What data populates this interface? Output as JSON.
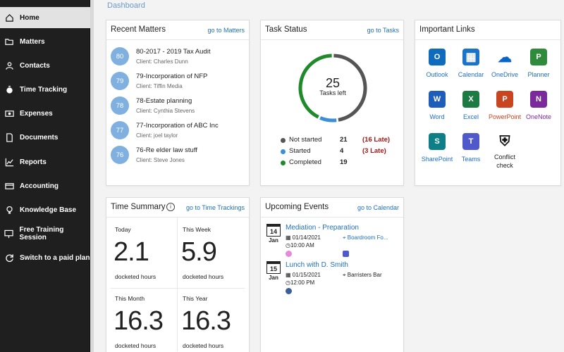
{
  "breadcrumb": "Dashboard",
  "sidebar": {
    "items": [
      {
        "label": "Home",
        "icon": "home-icon"
      },
      {
        "label": "Matters",
        "icon": "folder-icon"
      },
      {
        "label": "Contacts",
        "icon": "person-icon"
      },
      {
        "label": "Time Tracking",
        "icon": "stopwatch-icon"
      },
      {
        "label": "Expenses",
        "icon": "money-icon"
      },
      {
        "label": "Documents",
        "icon": "document-icon"
      },
      {
        "label": "Reports",
        "icon": "chart-icon"
      },
      {
        "label": "Accounting",
        "icon": "card-icon"
      },
      {
        "label": "Knowledge Base",
        "icon": "bulb-icon"
      },
      {
        "label": "Free Training Session",
        "icon": "presentation-icon"
      },
      {
        "label": "Switch to a paid plan",
        "icon": "refresh-icon"
      }
    ]
  },
  "recent_matters": {
    "title": "Recent Matters",
    "link": "go to Matters",
    "items": [
      {
        "num": "80",
        "title": "80-2017 - 2019 Tax Audit",
        "client": "Client: Charles Dunn"
      },
      {
        "num": "79",
        "title": "79-Incorporation of NFP",
        "client": "Client: Tiffin Media"
      },
      {
        "num": "78",
        "title": "78-Estate planning",
        "client": "Client: Cynthia Stevens"
      },
      {
        "num": "77",
        "title": "77-Incorporation of ABC Inc",
        "client": "Client: joel taylor"
      },
      {
        "num": "76",
        "title": "76-Re elder law stuff",
        "client": "Client: Steve Jones"
      }
    ]
  },
  "task_status": {
    "title": "Task Status",
    "link": "go to Tasks",
    "total": "25",
    "total_label": "Tasks left",
    "rows": [
      {
        "label": "Not started",
        "count": "21",
        "late": "(16 Late)",
        "color": "#555555",
        "value": 21
      },
      {
        "label": "Started",
        "count": "4",
        "late": "(3 Late)",
        "color": "#3a8fd6",
        "value": 4
      },
      {
        "label": "Completed",
        "count": "19",
        "late": "",
        "color": "#1f8a2a",
        "value": 19
      }
    ]
  },
  "important_links": {
    "title": "Important Links",
    "apps": [
      {
        "label": "Outlook",
        "icon": "outlook-icon",
        "glyph": "O",
        "color": "#0f6cbd"
      },
      {
        "label": "Calendar",
        "icon": "calendar-icon",
        "glyph": "▦",
        "color": "#1a73c9"
      },
      {
        "label": "OneDrive",
        "icon": "onedrive-icon",
        "glyph": "☁",
        "color": "#0a64c8"
      },
      {
        "label": "Planner",
        "icon": "planner-icon",
        "glyph": "P",
        "color": "#2f8a3c"
      },
      {
        "label": "Word",
        "icon": "word-icon",
        "glyph": "W",
        "color": "#1e5eb8"
      },
      {
        "label": "Excel",
        "icon": "excel-icon",
        "glyph": "X",
        "color": "#1d7a42"
      },
      {
        "label": "PowerPoint",
        "icon": "powerpoint-icon",
        "glyph": "P",
        "color": "#c8451f"
      },
      {
        "label": "OneNote",
        "icon": "onenote-icon",
        "glyph": "N",
        "color": "#7a2a9a"
      },
      {
        "label": "SharePoint",
        "icon": "sharepoint-icon",
        "glyph": "S",
        "color": "#0e7f86"
      },
      {
        "label": "Teams",
        "icon": "teams-icon",
        "glyph": "T",
        "color": "#5059c9"
      },
      {
        "label": "Conflict\ncheck",
        "icon": "shield-lock-icon",
        "glyph": "⛨",
        "color": "#ffffff"
      }
    ]
  },
  "time_summary": {
    "title": "Time Summary",
    "link": "go to Time Trackings",
    "cells": [
      {
        "label": "Today",
        "value": "2.1",
        "unit": "docketed hours"
      },
      {
        "label": "This Week",
        "value": "5.9",
        "unit": "docketed hours"
      },
      {
        "label": "This Month",
        "value": "16.3",
        "unit": "docketed hours"
      },
      {
        "label": "This Year",
        "value": "16.3",
        "unit": "docketed hours"
      }
    ]
  },
  "upcoming_events": {
    "title": "Upcoming Events",
    "link": "go to Calendar",
    "events": [
      {
        "day": "14",
        "month": "Jan",
        "title": "Mediation - Preparation",
        "date": "01/14/2021",
        "location": "Boardroom Fo...",
        "time": "10:00 AM",
        "avatar_color": "#e48ad8"
      },
      {
        "day": "15",
        "month": "Jan",
        "title": "Lunch with D. Smith",
        "date": "01/15/2021",
        "location": "Barristers Bar",
        "time": "12:00 PM",
        "avatar_color": "#3a5f9a"
      }
    ]
  }
}
